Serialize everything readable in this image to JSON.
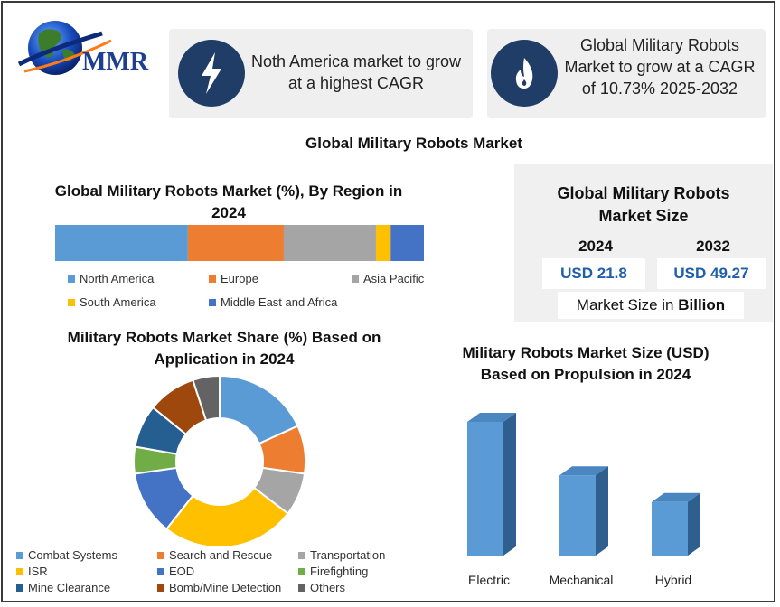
{
  "logo": {
    "text": "MMR"
  },
  "colors": {
    "dark_blue": "#1f3d66",
    "accent_blue": "#1f5fa8"
  },
  "cards": [
    {
      "icon": "lightning-icon",
      "text_lines": [
        "Noth America market to grow",
        "at a highest CAGR"
      ]
    },
    {
      "icon": "flame-icon",
      "text_lines": [
        "Global Military Robots",
        "Market to grow at a CAGR",
        "of 10.73% 2025-2032"
      ]
    }
  ],
  "main_title": "Global Military Robots Market",
  "market_size": {
    "title_lines": [
      "Global Military Robots",
      "Market Size"
    ],
    "years": [
      "2024",
      "2032"
    ],
    "values": [
      "USD 21.8",
      "USD 49.27"
    ],
    "footer_prefix": "Market Size in ",
    "footer_bold": "Billion"
  },
  "chart_data": [
    {
      "type": "bar",
      "orientation": "horizontal-stacked",
      "title_lines": [
        "Global Military Robots Market (%), By Region in",
        "2024"
      ],
      "series": [
        {
          "name": "North America",
          "value": 36,
          "color": "#5b9bd5"
        },
        {
          "name": "Europe",
          "value": 26,
          "color": "#ed7d31"
        },
        {
          "name": "Asia Pacific",
          "value": 25,
          "color": "#a5a5a5"
        },
        {
          "name": "South America",
          "value": 4,
          "color": "#ffc000"
        },
        {
          "name": "Middle East and Africa",
          "value": 9,
          "color": "#4472c4"
        }
      ]
    },
    {
      "type": "pie",
      "subtype": "donut",
      "title_lines": [
        "Military Robots Market Share (%) Based on",
        "Application in 2024"
      ],
      "series": [
        {
          "name": "Combat Systems",
          "value": 18,
          "color": "#5b9bd5"
        },
        {
          "name": "Search and Rescue",
          "value": 9,
          "color": "#ed7d31"
        },
        {
          "name": "Transportation",
          "value": 8,
          "color": "#a5a5a5"
        },
        {
          "name": "ISR",
          "value": 25,
          "color": "#ffc000"
        },
        {
          "name": "EOD",
          "value": 12,
          "color": "#4472c4"
        },
        {
          "name": "Firefighting",
          "value": 5,
          "color": "#70ad47"
        },
        {
          "name": "Mine Clearance",
          "value": 8,
          "color": "#255e91"
        },
        {
          "name": "Bomb/Mine Detection",
          "value": 9,
          "color": "#9e480e"
        },
        {
          "name": "Others",
          "value": 5,
          "color": "#636363"
        }
      ]
    },
    {
      "type": "bar",
      "subtype": "3d-column",
      "title_lines": [
        "Military Robots Market Size (USD)",
        "Based on Propulsion in 2024"
      ],
      "categories": [
        "Electric",
        "Mechanical",
        "Hybrid"
      ],
      "values": [
        100,
        60,
        40
      ],
      "color": "#5b9bd5"
    }
  ]
}
